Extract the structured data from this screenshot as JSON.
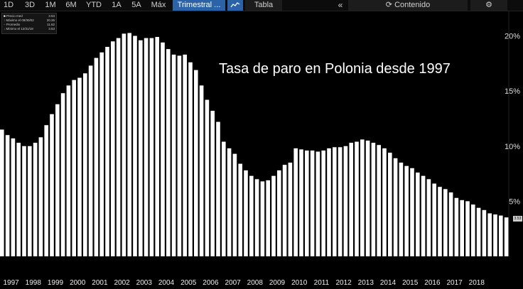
{
  "toolbar": {
    "ranges": [
      "1D",
      "3D",
      "1M",
      "6M",
      "YTD",
      "1A",
      "5A",
      "Máx"
    ],
    "frequency": "Trimestral ...",
    "table_label": "Tabla",
    "content_label": "Contenido",
    "icons": [
      "line-chart-icon",
      "collapse-left-icon",
      "refresh-icon",
      "gear-icon"
    ]
  },
  "legend": {
    "rows": [
      {
        "label": "Precio med",
        "value": "3.53"
      },
      {
        "label": "Máximo el 09/30/02",
        "value": "20.26"
      },
      {
        "label": "Promedio",
        "value": "11.62"
      },
      {
        "label": "Mínimo el 12/31/18",
        "value": "3.53"
      }
    ]
  },
  "title_overlay": "Tasa de paro en Polonia desde 1997",
  "last_value_badge": "3.53",
  "chart_data": {
    "type": "bar",
    "title": "Tasa de paro en Polonia desde 1997",
    "xlabel": "",
    "ylabel": "",
    "ylim": [
      0,
      22
    ],
    "y_ticks": [
      "5%",
      "10%",
      "15%",
      "20%"
    ],
    "grid": false,
    "year_labels": [
      "1997",
      "1998",
      "1999",
      "2000",
      "2001",
      "2002",
      "2003",
      "2004",
      "2005",
      "2006",
      "2007",
      "2008",
      "2009",
      "2010",
      "2011",
      "2012",
      "2013",
      "2014",
      "2015",
      "2016",
      "2017",
      "2018"
    ],
    "values": [
      11.5,
      11.0,
      10.7,
      10.3,
      10.0,
      10.0,
      10.3,
      10.8,
      11.9,
      12.9,
      13.8,
      14.8,
      15.5,
      16.0,
      16.2,
      16.6,
      17.3,
      18.0,
      18.5,
      19.0,
      19.5,
      19.8,
      20.2,
      20.26,
      20.0,
      19.6,
      19.8,
      19.8,
      19.9,
      19.4,
      18.8,
      18.3,
      18.2,
      18.3,
      17.6,
      16.9,
      15.5,
      14.2,
      13.2,
      12.2,
      10.4,
      9.8,
      9.3,
      8.4,
      7.8,
      7.3,
      7.0,
      6.8,
      6.9,
      7.3,
      7.8,
      8.3,
      8.5,
      9.8,
      9.7,
      9.6,
      9.6,
      9.5,
      9.6,
      9.8,
      9.9,
      9.9,
      10.0,
      10.3,
      10.4,
      10.6,
      10.5,
      10.3,
      10.1,
      9.8,
      9.4,
      8.9,
      8.5,
      8.2,
      8.0,
      7.6,
      7.3,
      7.0,
      6.6,
      6.3,
      6.1,
      5.8,
      5.3,
      5.1,
      5.0,
      4.7,
      4.4,
      4.2,
      3.9,
      3.8,
      3.7,
      3.53
    ]
  }
}
